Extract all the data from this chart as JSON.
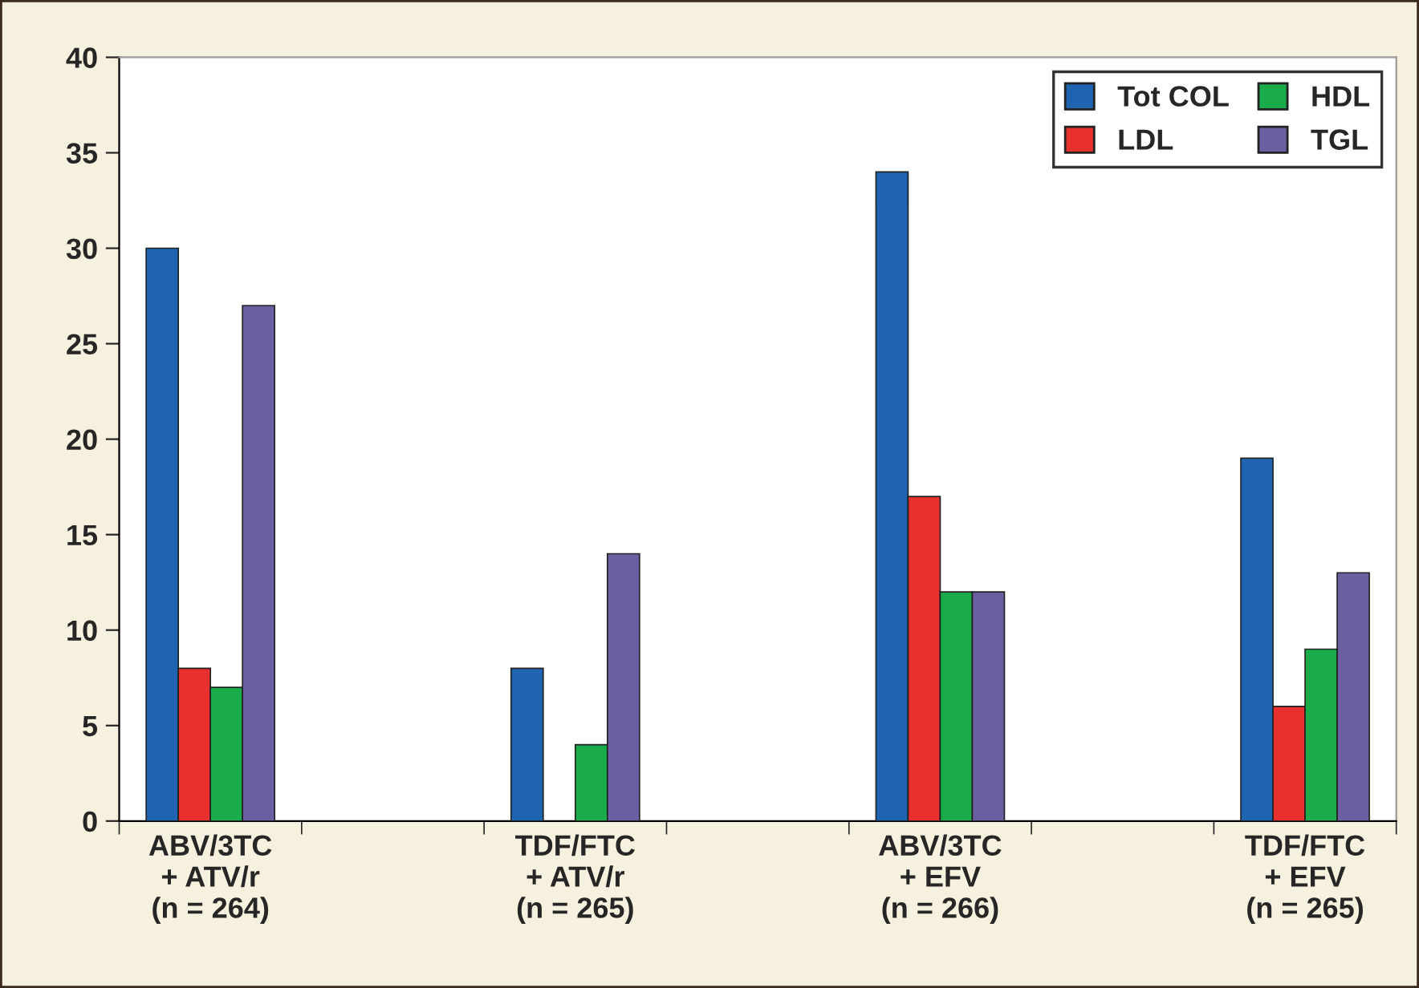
{
  "chart_data": {
    "type": "bar",
    "categories": [
      "ABV/3TC\n+ ATV/r\n(n = 264)",
      "TDF/FTC\n+ ATV/r\n(n = 265)",
      "ABV/3TC\n+ EFV\n(n = 266)",
      "TDF/FTC\n+ EFV\n(n = 265)"
    ],
    "series": [
      {
        "name": "Tot COL",
        "color": "#1f64b0",
        "values": [
          30,
          8,
          34,
          19
        ]
      },
      {
        "name": "LDL",
        "color": "#e8312f",
        "values": [
          8,
          null,
          17,
          6
        ]
      },
      {
        "name": "HDL",
        "color": "#1aab4a",
        "values": [
          7,
          4,
          12,
          9
        ]
      },
      {
        "name": "TGL",
        "color": "#6a5fa0",
        "values": [
          27,
          14,
          12,
          13
        ]
      }
    ],
    "ylim": [
      0,
      40
    ],
    "yticks": [
      0,
      5,
      10,
      15,
      20,
      25,
      30,
      35,
      40
    ],
    "grid": false,
    "legend": "top right"
  }
}
